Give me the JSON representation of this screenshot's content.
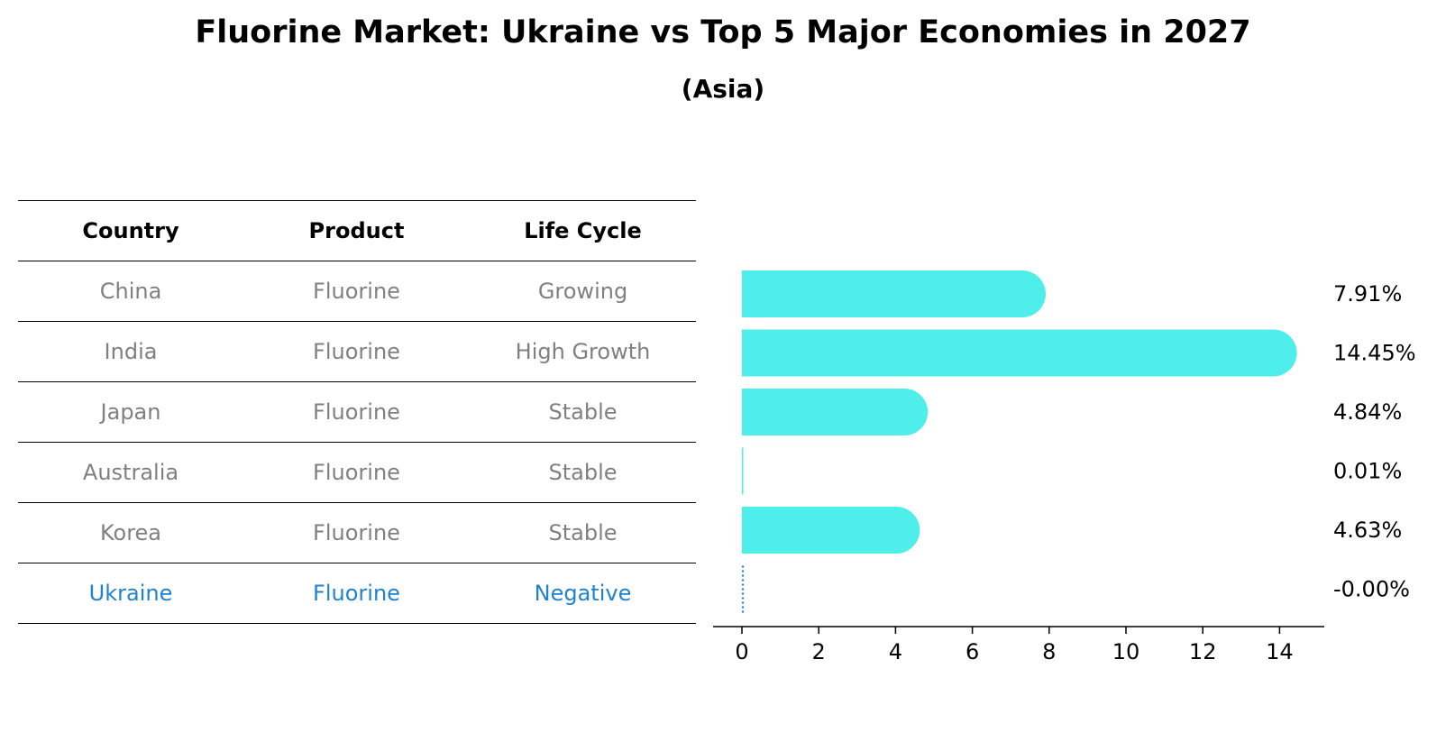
{
  "chart_data": {
    "type": "table",
    "title": "Fluorine Market: Ukraine vs Top 5 Major Economies in 2027",
    "subtitle": "(Asia)",
    "table": {
      "columns": [
        "Country",
        "Product",
        "Life Cycle"
      ],
      "rows": [
        {
          "country": "China",
          "product": "Fluorine",
          "life_cycle": "Growing",
          "highlight": false
        },
        {
          "country": "India",
          "product": "Fluorine",
          "life_cycle": "High Growth",
          "highlight": false
        },
        {
          "country": "Japan",
          "product": "Fluorine",
          "life_cycle": "Stable",
          "highlight": false
        },
        {
          "country": "Australia",
          "product": "Fluorine",
          "life_cycle": "Stable",
          "highlight": false
        },
        {
          "country": "Korea",
          "product": "Fluorine",
          "life_cycle": "Stable",
          "highlight": false
        },
        {
          "country": "Ukraine",
          "product": "Fluorine",
          "life_cycle": "Negative",
          "highlight": true
        }
      ]
    },
    "bars": {
      "type": "bar",
      "orientation": "horizontal",
      "categories": [
        "China",
        "India",
        "Japan",
        "Australia",
        "Korea",
        "Ukraine"
      ],
      "values": [
        7.91,
        14.45,
        4.84,
        0.01,
        4.63,
        -0.0
      ],
      "value_labels": [
        "7.91%",
        "14.45%",
        "4.84%",
        "0.01%",
        "4.63%",
        "-0.00%"
      ],
      "xlim": [
        -0.75,
        15.2
      ],
      "xticks": [
        0,
        2,
        4,
        6,
        8,
        10,
        12,
        14
      ],
      "xlabel": "",
      "ylabel": "",
      "grid": false,
      "bar_color": "#4eeeea",
      "highlight_color": "#1f77d4"
    }
  }
}
